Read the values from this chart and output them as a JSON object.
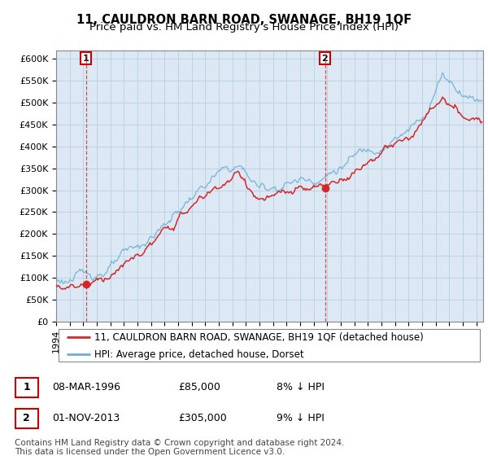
{
  "title": "11, CAULDRON BARN ROAD, SWANAGE, BH19 1QF",
  "subtitle": "Price paid vs. HM Land Registry's House Price Index (HPI)",
  "ylim": [
    0,
    620000
  ],
  "xlim": [
    1994,
    2025.5
  ],
  "yticks": [
    0,
    50000,
    100000,
    150000,
    200000,
    250000,
    300000,
    350000,
    400000,
    450000,
    500000,
    550000,
    600000
  ],
  "ytick_labels": [
    "£0",
    "£50K",
    "£100K",
    "£150K",
    "£200K",
    "£250K",
    "£300K",
    "£350K",
    "£400K",
    "£450K",
    "£500K",
    "£550K",
    "£600K"
  ],
  "sale1_date": 1996.19,
  "sale1_price": 85000,
  "sale2_date": 2013.83,
  "sale2_price": 305000,
  "hpi_color": "#6baed6",
  "price_color": "#d62728",
  "vline_color": "#d62728",
  "bg_color": "#dce9f5",
  "grid_color": "#b8cfe0",
  "legend_line1": "11, CAULDRON BARN ROAD, SWANAGE, BH19 1QF (detached house)",
  "legend_line2": "HPI: Average price, detached house, Dorset",
  "table_row1": [
    "1",
    "08-MAR-1996",
    "£85,000",
    "8% ↓ HPI"
  ],
  "table_row2": [
    "2",
    "01-NOV-2013",
    "£305,000",
    "9% ↓ HPI"
  ],
  "footnote": "Contains HM Land Registry data © Crown copyright and database right 2024.\nThis data is licensed under the Open Government Licence v3.0.",
  "title_fontsize": 10.5,
  "subtitle_fontsize": 9.5,
  "tick_fontsize": 8,
  "legend_fontsize": 8.5,
  "table_fontsize": 9,
  "footnote_fontsize": 7.5
}
